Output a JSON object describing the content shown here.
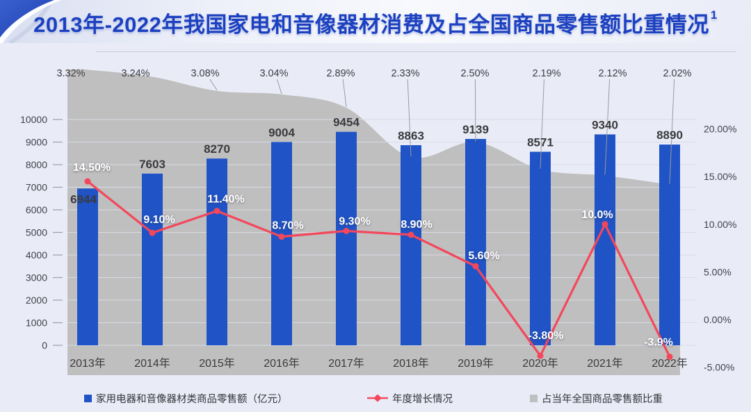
{
  "banner": {
    "title": "2013年-2022年我国家电和音像器材消费及占全国商品零售额比重情况",
    "superscript": "1",
    "title_color": "#1C40C0"
  },
  "chart_data": {
    "type": "combo",
    "title": "2013年-2022年我国家电和音像器材消费及占全国商品零售额比重情况",
    "categories": [
      "2013年",
      "2014年",
      "2015年",
      "2016年",
      "2017年",
      "2018年",
      "2019年",
      "2020年",
      "2021年",
      "2022年"
    ],
    "series": [
      {
        "name": "家用电器和音像器材类商品零售额（亿元）",
        "type": "bar",
        "axis": "left",
        "color": "#1F53C6",
        "values": [
          6944,
          7603,
          8270,
          9004,
          9454,
          8863,
          9139,
          8571,
          9340,
          8890
        ],
        "data_labels": [
          "6944",
          "7603",
          "8270",
          "9004",
          "9454",
          "8863",
          "9139",
          "8571",
          "9340",
          "8890"
        ]
      },
      {
        "name": "年度增长情况",
        "type": "line",
        "axis": "right",
        "color": "#F4475B",
        "values": [
          14.5,
          9.1,
          11.4,
          8.7,
          9.3,
          8.9,
          5.6,
          -3.8,
          10.0,
          -3.9
        ],
        "data_labels": [
          "14.50%",
          "9.10%",
          "11.40%",
          "8.70%",
          "9.30%",
          "8.90%",
          "5.60%",
          "-3.80%",
          "10.0%",
          "-3.9%"
        ]
      },
      {
        "name": "占当年全国商品零售额比重",
        "type": "area",
        "axis": "secondary-hidden",
        "color": "#BFBFBF",
        "values": [
          3.32,
          3.24,
          3.08,
          3.04,
          2.89,
          2.33,
          2.5,
          2.19,
          2.12,
          2.02
        ],
        "data_labels": [
          "3.32%",
          "3.24%",
          "3.08%",
          "3.04%",
          "2.89%",
          "2.33%",
          "2.50%",
          "2.19%",
          "2.12%",
          "2.02%"
        ]
      }
    ],
    "left_axis": {
      "min": 0,
      "max": 10000,
      "step": 1000,
      "tick_labels": [
        "0",
        "1000",
        "2000",
        "3000",
        "4000",
        "5000",
        "6000",
        "7000",
        "8000",
        "9000",
        "10000"
      ]
    },
    "right_axis": {
      "min": -5,
      "max": 20,
      "tick_values": [
        20,
        15,
        10,
        5,
        0,
        -5
      ],
      "tick_labels": [
        "20.00%",
        "15.00%",
        "10.00%",
        "5.00%",
        "0.00%",
        "-5.00%"
      ]
    },
    "grid": true,
    "legend_position": "bottom"
  }
}
